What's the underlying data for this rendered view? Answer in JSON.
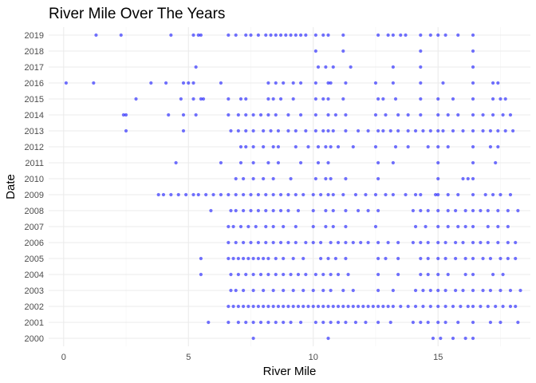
{
  "chart_data": {
    "type": "scatter",
    "title": "River Mile Over The Years",
    "xlabel": "River Mile",
    "ylabel": "Date",
    "xlim": [
      -0.6,
      18.7
    ],
    "x_ticks": [
      0,
      5,
      10,
      15
    ],
    "y_categories": [
      "2000",
      "2001",
      "2002",
      "2003",
      "2004",
      "2005",
      "2006",
      "2007",
      "2008",
      "2009",
      "2010",
      "2011",
      "2012",
      "2013",
      "2014",
      "2015",
      "2016",
      "2017",
      "2018",
      "2019"
    ],
    "grid": true,
    "legend": "none",
    "point_color": "#0000ff",
    "point_opacity": 0.55,
    "series": [
      {
        "year": "2019",
        "x": [
          1.3,
          2.3,
          4.3,
          5.2,
          5.4,
          5.5,
          6.6,
          6.9,
          7.3,
          7.5,
          7.8,
          8.1,
          8.3,
          8.5,
          8.7,
          8.9,
          9.1,
          9.3,
          9.5,
          9.7,
          10.1,
          10.4,
          10.6,
          11.2,
          12.6,
          13.0,
          13.2,
          13.5,
          13.7,
          14.3,
          14.7,
          15.0,
          15.3,
          15.8,
          16.4
        ]
      },
      {
        "year": "2018",
        "x": [
          10.1,
          11.2,
          14.3,
          16.4
        ]
      },
      {
        "year": "2017",
        "x": [
          5.3,
          10.2,
          10.5,
          10.8,
          11.5,
          13.2,
          14.3,
          16.4
        ]
      },
      {
        "year": "2016",
        "x": [
          0.1,
          1.2,
          3.5,
          4.1,
          4.8,
          5.0,
          5.2,
          6.3,
          8.2,
          8.5,
          8.8,
          9.2,
          9.5,
          10.1,
          10.6,
          10.7,
          11.3,
          12.5,
          13.2,
          14.3,
          15.2,
          16.4,
          17.2,
          17.4
        ]
      },
      {
        "year": "2015",
        "x": [
          2.9,
          4.7,
          5.2,
          5.5,
          5.6,
          6.6,
          7.1,
          7.3,
          8.2,
          8.4,
          8.7,
          9.2,
          10.1,
          10.4,
          10.6,
          11.2,
          12.6,
          12.8,
          13.3,
          14.3,
          15.0,
          15.6,
          16.4,
          17.2,
          17.5,
          17.7
        ]
      },
      {
        "year": "2014",
        "x": [
          2.4,
          2.5,
          4.2,
          4.8,
          5.3,
          6.6,
          7.0,
          7.3,
          7.6,
          7.9,
          8.2,
          8.5,
          9.0,
          9.5,
          10.1,
          10.6,
          10.9,
          11.3,
          12.5,
          12.9,
          13.4,
          13.8,
          14.3,
          15.0,
          15.4,
          15.8,
          16.4,
          16.8,
          17.2,
          17.6,
          17.9
        ]
      },
      {
        "year": "2013",
        "x": [
          2.5,
          4.8,
          6.7,
          7.0,
          7.3,
          7.6,
          8.0,
          8.3,
          8.6,
          9.0,
          9.3,
          9.7,
          10.1,
          10.4,
          10.6,
          10.8,
          11.3,
          11.8,
          12.2,
          12.6,
          12.8,
          13.1,
          13.4,
          13.8,
          14.1,
          14.4,
          14.7,
          15.0,
          15.2,
          15.6,
          16.0,
          16.4,
          16.8,
          17.1,
          17.4,
          17.7,
          18.0
        ]
      },
      {
        "year": "2012",
        "x": [
          7.1,
          7.3,
          7.6,
          8.0,
          8.4,
          8.6,
          9.3,
          9.8,
          10.2,
          10.5,
          10.7,
          11.0,
          11.6,
          12.5,
          13.3,
          13.8,
          14.6,
          15.0,
          15.4,
          16.4,
          17.1,
          17.4
        ]
      },
      {
        "year": "2011",
        "x": [
          4.5,
          6.3,
          7.1,
          7.6,
          8.2,
          8.6,
          9.5,
          10.2,
          10.6,
          12.6,
          13.2,
          15.0,
          16.4,
          17.3
        ]
      },
      {
        "year": "2010",
        "x": [
          6.9,
          7.2,
          7.6,
          8.0,
          8.4,
          9.1,
          10.1,
          10.5,
          10.7,
          11.3,
          12.6,
          15.0,
          16.0,
          16.2,
          16.4
        ]
      },
      {
        "year": "2009",
        "x": [
          3.8,
          4.0,
          4.3,
          4.6,
          4.9,
          5.2,
          5.4,
          5.7,
          6.0,
          6.3,
          6.6,
          6.9,
          7.2,
          7.5,
          7.8,
          8.1,
          8.4,
          8.7,
          9.0,
          9.3,
          9.6,
          10.0,
          10.3,
          10.6,
          10.8,
          11.2,
          11.7,
          12.1,
          12.5,
          12.9,
          13.2,
          13.7,
          14.1,
          14.3,
          14.9,
          15.0,
          15.4,
          15.8,
          16.4,
          16.9,
          17.2,
          17.5,
          17.9
        ]
      },
      {
        "year": "2008",
        "x": [
          5.9,
          6.7,
          6.9,
          7.2,
          7.5,
          7.8,
          8.1,
          8.4,
          8.7,
          9.0,
          9.4,
          10.0,
          10.5,
          10.8,
          11.3,
          11.8,
          12.2,
          12.6,
          14.0,
          14.3,
          14.6,
          15.0,
          15.4,
          15.7,
          16.1,
          16.4,
          16.7,
          17.0,
          17.4,
          17.8,
          18.2
        ]
      },
      {
        "year": "2007",
        "x": [
          6.6,
          6.8,
          7.1,
          7.4,
          7.7,
          8.1,
          8.4,
          8.8,
          9.3,
          10.0,
          10.5,
          10.8,
          11.3,
          12.5,
          14.1,
          14.5,
          15.0,
          15.4,
          15.8,
          16.1,
          16.4,
          17.0,
          17.4,
          17.8
        ]
      },
      {
        "year": "2006",
        "x": [
          6.6,
          6.9,
          7.2,
          7.5,
          7.8,
          8.1,
          8.4,
          8.7,
          9.0,
          9.3,
          9.7,
          10.0,
          10.3,
          10.7,
          11.0,
          11.3,
          11.6,
          11.9,
          12.2,
          12.6,
          13.0,
          13.4,
          14.0,
          14.3,
          14.6,
          15.0,
          15.3,
          15.7,
          16.0,
          16.4,
          16.7,
          17.0,
          17.4,
          17.8,
          18.1
        ]
      },
      {
        "year": "2005",
        "x": [
          5.5,
          6.6,
          6.8,
          7.0,
          7.2,
          7.4,
          7.6,
          7.8,
          8.0,
          8.2,
          8.5,
          8.8,
          9.2,
          9.6,
          10.3,
          10.6,
          10.9,
          11.3,
          12.6,
          12.9,
          13.4,
          14.3,
          14.6,
          15.0,
          15.3,
          15.7,
          16.1,
          16.4,
          16.8,
          17.1,
          17.5,
          17.8,
          18.1
        ]
      },
      {
        "year": "2004",
        "x": [
          5.5,
          6.7,
          7.0,
          7.3,
          7.6,
          7.9,
          8.2,
          8.5,
          8.8,
          9.1,
          9.4,
          9.7,
          10.1,
          10.4,
          10.7,
          11.0,
          11.4,
          12.6,
          13.4,
          14.3,
          14.6,
          15.0,
          15.4,
          16.1,
          16.4,
          17.2,
          17.6
        ]
      },
      {
        "year": "2003",
        "x": [
          6.7,
          6.9,
          7.2,
          7.6,
          8.0,
          8.4,
          8.8,
          9.2,
          9.6,
          10.0,
          10.4,
          10.7,
          11.2,
          11.6,
          12.6,
          13.2,
          14.1,
          14.4,
          14.7,
          15.0,
          15.3,
          15.7,
          16.0,
          16.4,
          16.8,
          17.1,
          17.5,
          17.9,
          18.3
        ]
      },
      {
        "year": "2002",
        "x": [
          6.6,
          6.8,
          7.0,
          7.2,
          7.4,
          7.6,
          7.8,
          8.0,
          8.2,
          8.4,
          8.6,
          8.8,
          9.0,
          9.2,
          9.4,
          9.6,
          9.8,
          10.0,
          10.2,
          10.4,
          10.6,
          10.8,
          11.0,
          11.2,
          11.4,
          11.6,
          11.8,
          12.0,
          12.2,
          12.4,
          12.6,
          12.8,
          13.0,
          13.2,
          13.5,
          13.8,
          14.1,
          14.4,
          14.7,
          15.0,
          15.3,
          15.6,
          15.9,
          16.2,
          16.4,
          16.7,
          17.0,
          17.3,
          17.6,
          17.9,
          18.1
        ]
      },
      {
        "year": "2001",
        "x": [
          5.8,
          6.6,
          7.0,
          7.3,
          7.6,
          7.9,
          8.2,
          8.5,
          8.8,
          9.1,
          9.5,
          10.1,
          10.4,
          10.7,
          11.0,
          11.3,
          11.7,
          12.1,
          12.6,
          13.1,
          14.0,
          14.3,
          14.6,
          15.0,
          15.3,
          15.8,
          16.4,
          17.1,
          17.5,
          18.2
        ]
      },
      {
        "year": "2000",
        "x": [
          7.6,
          10.6,
          14.8,
          15.1,
          15.6,
          16.1,
          16.4
        ]
      }
    ]
  }
}
